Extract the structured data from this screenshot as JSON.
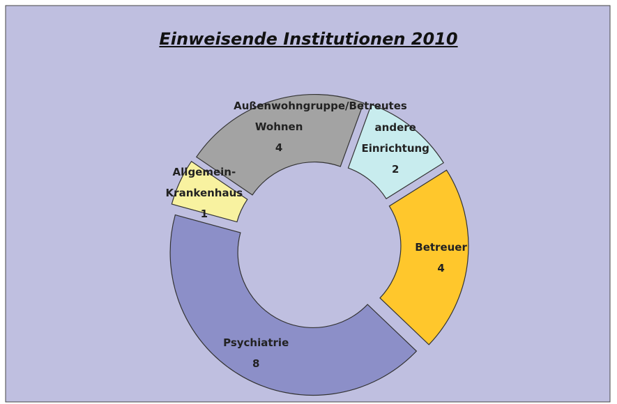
{
  "chart_data": {
    "type": "donut",
    "title": "Einweisende Institutionen 2010",
    "categories": [
      "andere Einrichtung",
      "Betreuer",
      "Psychiatrie",
      "Allgemein-Krankenhaus",
      "Außenwohngruppe/Betreutes Wohnen"
    ],
    "values": [
      2,
      4,
      8,
      1,
      4
    ],
    "colors": [
      "#c8ecee",
      "#ffc72c",
      "#8c8fc8",
      "#f8f2a0",
      "#a3a3a3"
    ]
  }
}
